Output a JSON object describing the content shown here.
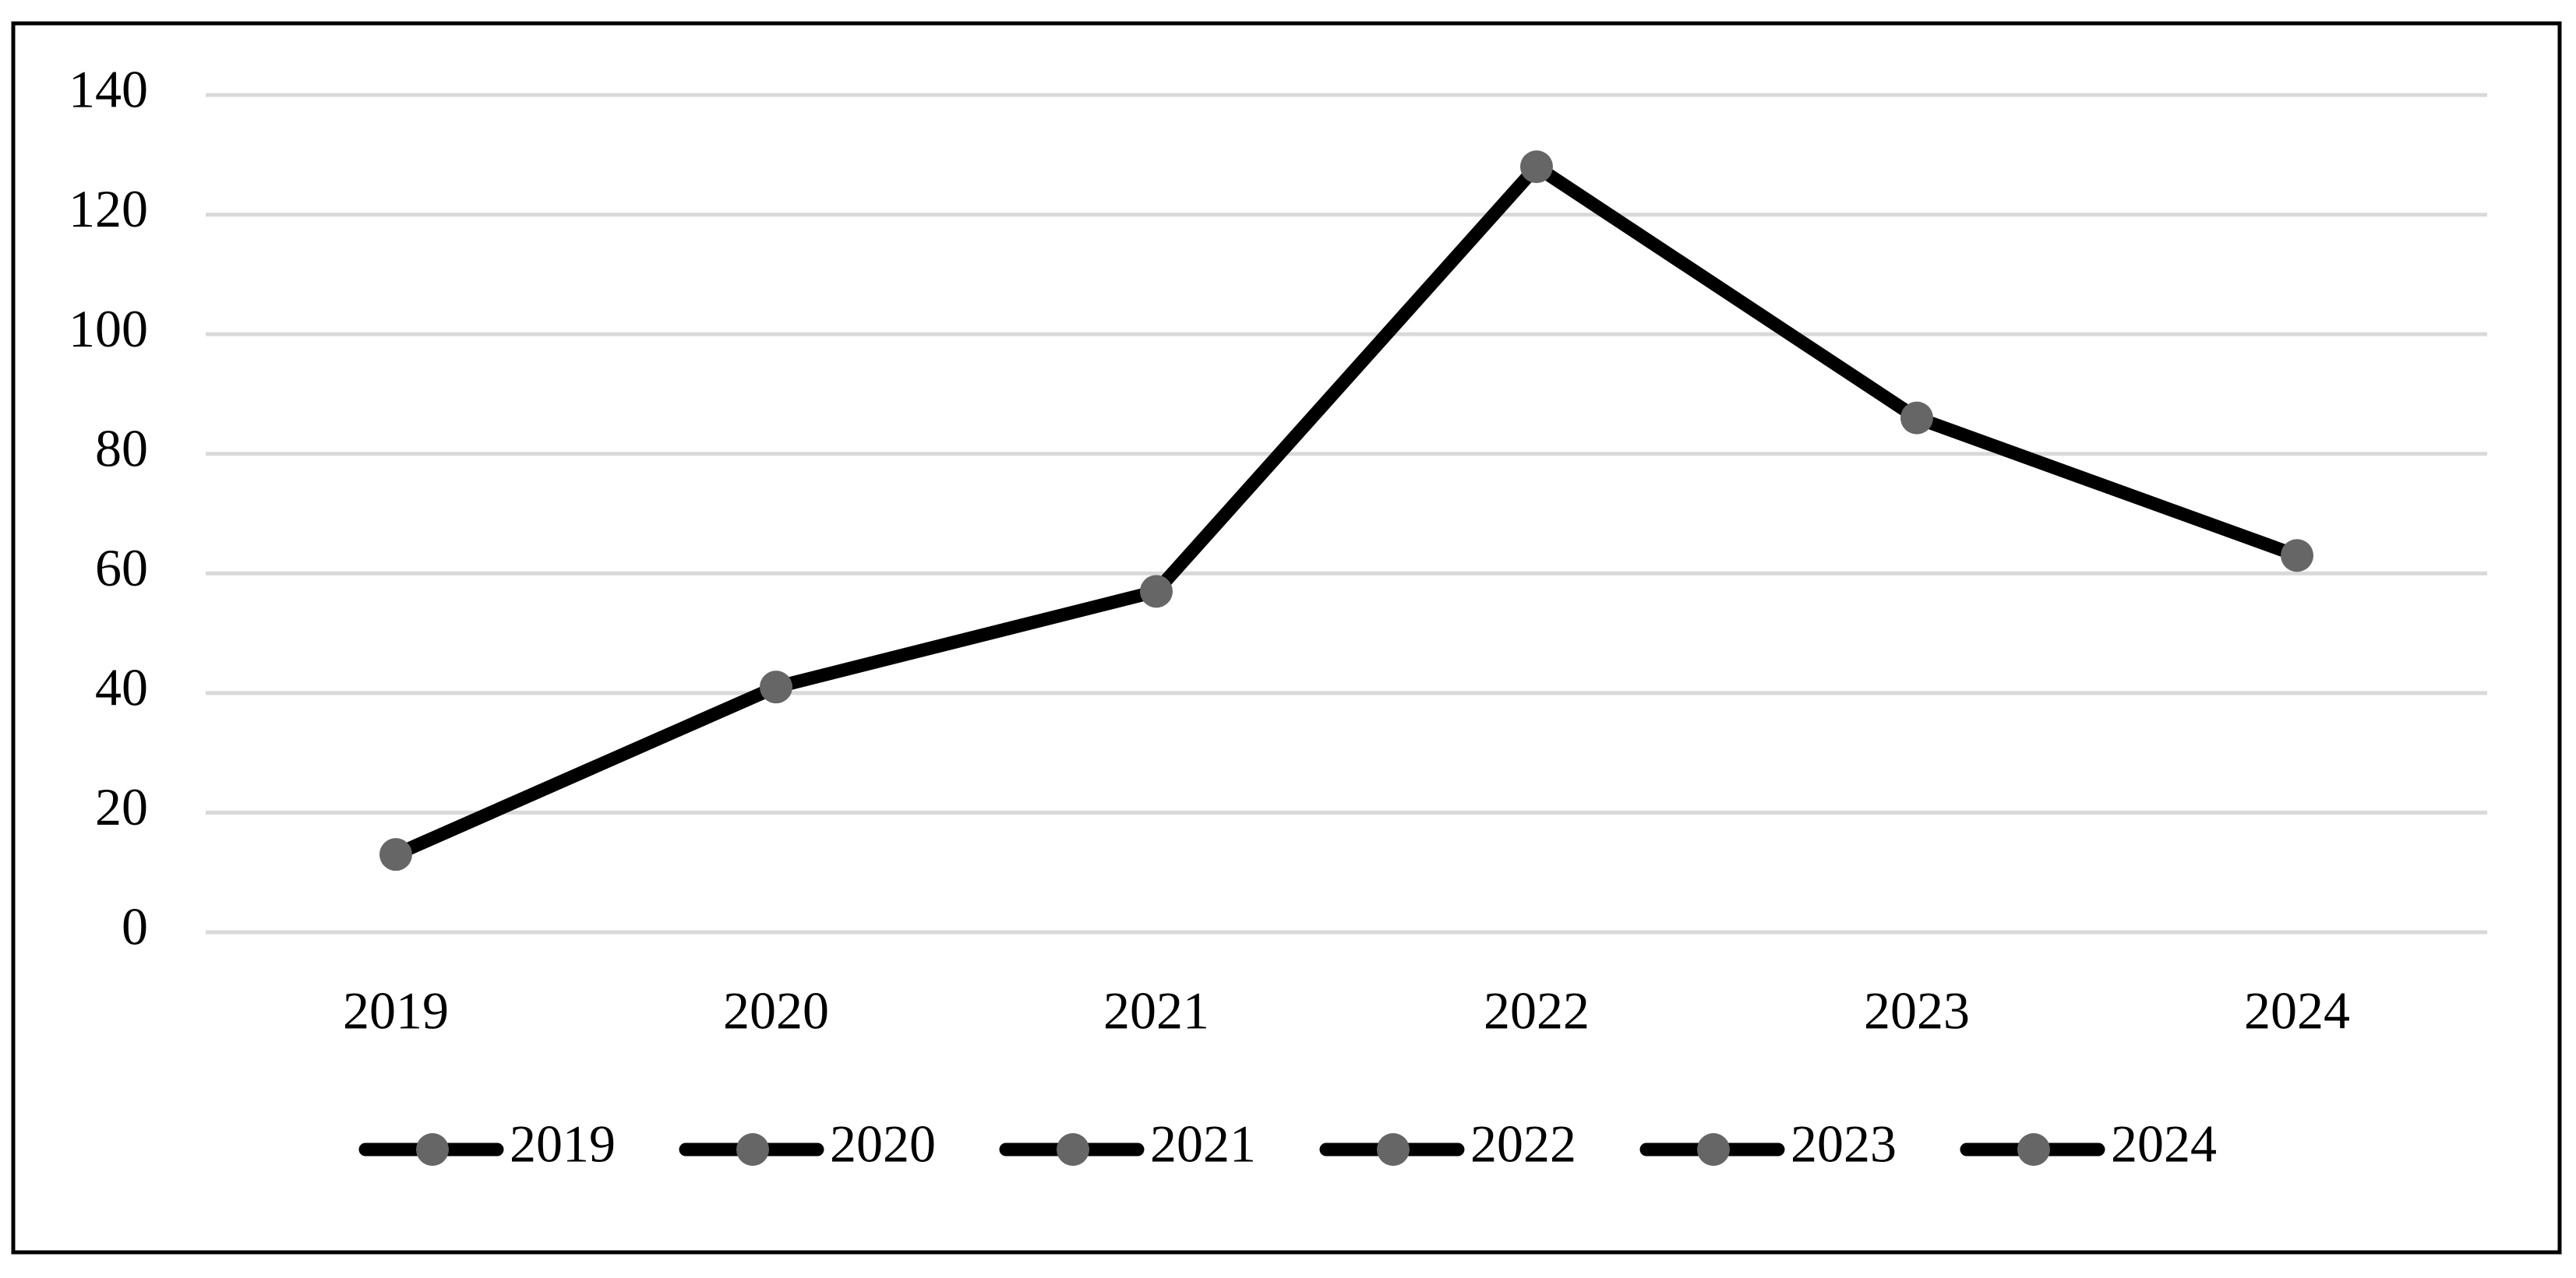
{
  "chart_data": {
    "type": "line",
    "categories": [
      "2019",
      "2020",
      "2021",
      "2022",
      "2023",
      "2024"
    ],
    "values": [
      13,
      41,
      57,
      128,
      86,
      63
    ],
    "color": "#000000",
    "marker_color": "#666666",
    "ylim": [
      0,
      140
    ],
    "yticks": [
      0,
      20,
      40,
      60,
      80,
      100,
      120,
      140
    ],
    "grid": true,
    "legend": "bottom"
  }
}
